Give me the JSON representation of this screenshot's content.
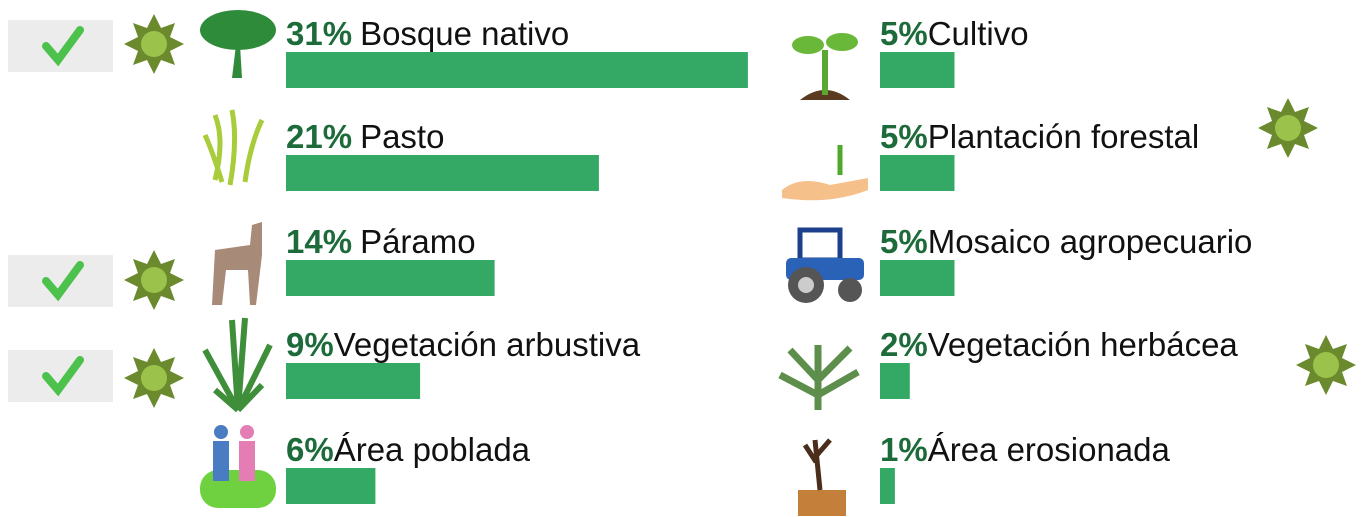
{
  "chart_data": {
    "type": "bar",
    "categories": [
      "Bosque nativo",
      "Pasto",
      "Páramo",
      "Vegetación arbustiva",
      "Área poblada",
      "Cultivo",
      "Plantación forestal",
      "Mosaico agropecuario",
      "Vegetación herbácea",
      "Área erosionada"
    ],
    "values": [
      31,
      21,
      14,
      9,
      6,
      5,
      5,
      5,
      2,
      1
    ],
    "value_labels": [
      "31%",
      "21%",
      "14%",
      "9%",
      "6%",
      "5%",
      "5%",
      "5%",
      "2%",
      "1%"
    ],
    "color": "#34a865"
  }
}
